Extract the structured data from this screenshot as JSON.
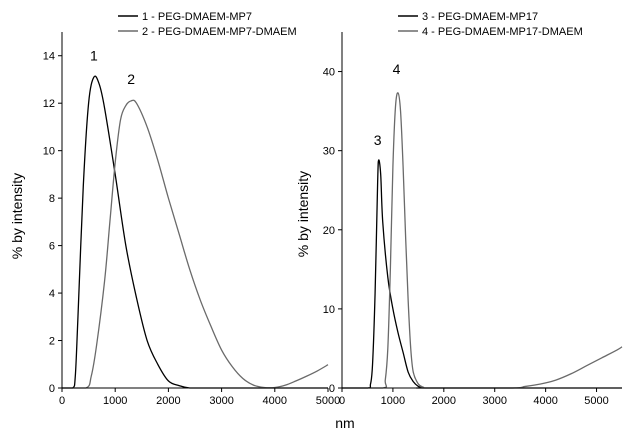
{
  "chart_data": [
    {
      "type": "line",
      "xlabel": "nm",
      "ylabel": "% by intensity",
      "xlim": [
        0,
        5000
      ],
      "ylim": [
        0,
        15
      ],
      "xticks": [
        0,
        1000,
        2000,
        3000,
        4000,
        5000
      ],
      "yticks": [
        0,
        2,
        4,
        6,
        8,
        10,
        12,
        14
      ],
      "xtick_labels": [
        "0",
        "1000",
        "2000",
        "3000",
        "4000",
        "5000"
      ],
      "ytick_labels": [
        "0",
        "2",
        "4",
        "6",
        "8",
        "10",
        "12",
        "14"
      ],
      "legend": "top-center",
      "series": [
        {
          "name": "1 - PEG-DMAEM-MP7",
          "color": "#000000",
          "x": [
            0,
            200,
            250,
            300,
            400,
            500,
            600,
            700,
            800,
            1000,
            1200,
            1400,
            1600,
            1800,
            2000,
            2200,
            2400,
            2600,
            3000,
            4000,
            5000
          ],
          "y": [
            0,
            0,
            0.5,
            3.0,
            8.5,
            12.0,
            13.1,
            12.8,
            11.8,
            9.0,
            6.0,
            3.8,
            2.0,
            1.0,
            0.3,
            0.1,
            0,
            0,
            0,
            0,
            0
          ]
        },
        {
          "name": "2 - PEG-DMAEM-MP7-DMAEM",
          "color": "#6a6a6a",
          "x": [
            0,
            450,
            550,
            650,
            800,
            900,
            1000,
            1100,
            1200,
            1300,
            1400,
            1600,
            1800,
            2000,
            2200,
            2400,
            2600,
            2800,
            3000,
            3200,
            3400,
            3600,
            3800,
            4000,
            4200,
            4400,
            4600,
            4800,
            5000
          ],
          "y": [
            0,
            0,
            0.5,
            1.8,
            4.5,
            7.0,
            9.5,
            11.3,
            11.9,
            12.1,
            12.0,
            11.0,
            9.6,
            8.0,
            6.5,
            5.0,
            3.7,
            2.6,
            1.6,
            0.9,
            0.4,
            0.12,
            0.02,
            0.02,
            0.12,
            0.3,
            0.5,
            0.72,
            0.98
          ]
        }
      ],
      "annotations": [
        {
          "text": "1",
          "x": 600,
          "y": 13.8
        },
        {
          "text": "2",
          "x": 1300,
          "y": 12.8
        }
      ]
    },
    {
      "type": "line",
      "xlabel": "",
      "ylabel": "% by intensity",
      "xlim": [
        0,
        5500
      ],
      "ylim": [
        0,
        45
      ],
      "xticks": [
        0,
        1000,
        2000,
        3000,
        4000,
        5000
      ],
      "yticks": [
        0,
        10,
        20,
        30,
        40
      ],
      "xtick_labels": [
        "0",
        "1000",
        "2000",
        "3000",
        "4000",
        "5000"
      ],
      "ytick_labels": [
        "0",
        "10",
        "20",
        "30",
        "40"
      ],
      "legend": "top-center",
      "series": [
        {
          "name": "3 - PEG-DMAEM-MP17",
          "color": "#000000",
          "x": [
            0,
            500,
            560,
            600,
            650,
            700,
            720,
            760,
            800,
            900,
            1000,
            1100,
            1200,
            1300,
            1400,
            1500,
            1600,
            1800,
            5500
          ],
          "y": [
            0,
            0,
            0.5,
            3.0,
            12.0,
            26.0,
            28.8,
            27.0,
            21.0,
            14.0,
            10.0,
            7.0,
            4.5,
            2.0,
            0.8,
            0.2,
            0,
            0,
            0
          ]
        },
        {
          "name": "4 - PEG-DMAEM-MP17-DMAEM",
          "color": "#6a6a6a",
          "x": [
            0,
            800,
            850,
            900,
            950,
            1000,
            1050,
            1100,
            1150,
            1200,
            1250,
            1300,
            1350,
            1400,
            1500,
            1600,
            1700,
            3300,
            3600,
            3900,
            4200,
            4500,
            4800,
            5100,
            5400,
            5500
          ],
          "y": [
            0,
            0,
            1.0,
            5.0,
            15.0,
            28.0,
            35.5,
            37.3,
            35.0,
            28.0,
            19.0,
            11.0,
            5.0,
            2.0,
            0.5,
            0.1,
            0,
            0,
            0.2,
            0.5,
            1.0,
            1.8,
            2.8,
            3.8,
            4.8,
            5.2
          ]
        }
      ],
      "annotations": [
        {
          "text": "3",
          "x": 700,
          "y": 30.7
        },
        {
          "text": "4",
          "x": 1070,
          "y": 39.7
        }
      ]
    }
  ]
}
